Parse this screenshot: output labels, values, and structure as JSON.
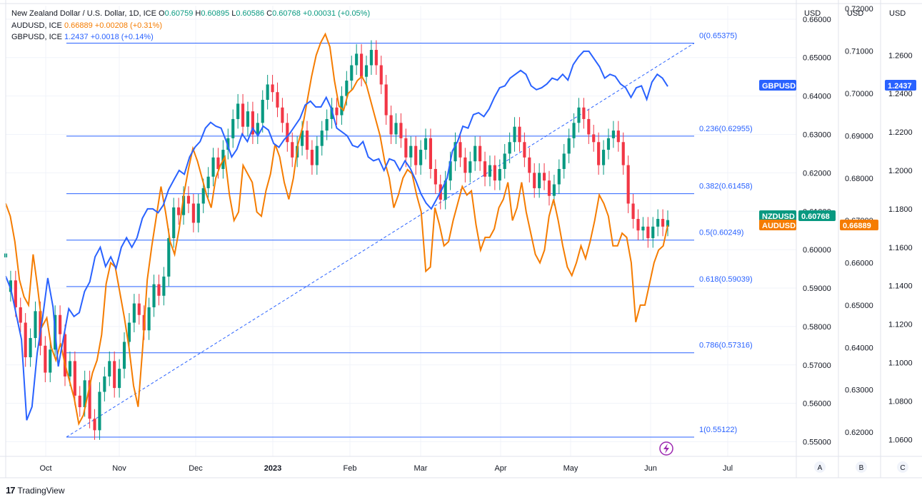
{
  "legend": {
    "nzd": {
      "name": "New Zealand Dollar / U.S. Dollar, 1D, ICE",
      "o_label": "O",
      "o": "0.60759",
      "h_label": "H",
      "h": "0.60895",
      "l_label": "L",
      "l": "0.60586",
      "c_label": "C",
      "c": "0.60768",
      "chg": "+0.00031 (+0.05%)",
      "color": "#089981"
    },
    "aud": {
      "name": "AUDUSD, ICE",
      "value": "0.66889",
      "chg": "+0.00208 (+0.31%)",
      "color": "#f57c00"
    },
    "gbp": {
      "name": "GBPUSD, ICE",
      "value": "1.2437",
      "chg": "+0.0018 (+0.14%)",
      "color": "#2962ff"
    }
  },
  "axis_headers": [
    "USD",
    "USD",
    "USD"
  ],
  "scale_letters": [
    "A",
    "B",
    "C"
  ],
  "footer": {
    "brand": "TradingView",
    "logo": "17"
  },
  "colors": {
    "up": "#089981",
    "down": "#f23645",
    "aud": "#f57c00",
    "gbp": "#2962ff",
    "fib": "#2962ff",
    "grid": "#e0e3eb"
  },
  "chart_data": {
    "type": "line",
    "x_ticks": [
      "Oct",
      "Nov",
      "Dec",
      "2023",
      "Feb",
      "Mar",
      "Apr",
      "May",
      "Jun",
      "Jul"
    ],
    "axis_a": {
      "ticks": [
        "0.66000",
        "0.65000",
        "0.64000",
        "0.63000",
        "0.62000",
        "0.61000",
        "0.60000",
        "0.59000",
        "0.58000",
        "0.57000",
        "0.56000",
        "0.55000"
      ],
      "range": [
        0.5462,
        0.6635
      ]
    },
    "axis_b": {
      "ticks": [
        "0.72000",
        "0.71000",
        "0.70000",
        "0.69000",
        "0.68000",
        "0.67000",
        "0.66000",
        "0.65000",
        "0.64000",
        "0.63000",
        "0.62000"
      ],
      "range": [
        0.6143,
        0.7207
      ]
    },
    "axis_c": {
      "ticks": [
        "1.2600",
        "1.2400",
        "1.2200",
        "1.2000",
        "1.1800",
        "1.1600",
        "1.1400",
        "1.1200",
        "1.1000",
        "1.0800",
        "1.0600"
      ],
      "range": [
        1.0512,
        1.2857
      ]
    },
    "fib_levels": [
      {
        "label": "0(0.65375)",
        "value": 0.65375
      },
      {
        "label": "0.236(0.62955)",
        "value": 0.62955
      },
      {
        "label": "0.382(0.61458)",
        "value": 0.61458
      },
      {
        "label": "0.5(0.60249)",
        "value": 0.60249
      },
      {
        "label": "0.618(0.59039)",
        "value": 0.59039
      },
      {
        "label": "0.786(0.57316)",
        "value": 0.57316
      },
      {
        "label": "1(0.55122)",
        "value": 0.55122
      }
    ],
    "trend_line": {
      "from": [
        "2022-10-13",
        0.55122
      ],
      "to": [
        "2023-06-14",
        0.65375
      ]
    },
    "series": [
      {
        "name": "NZDUSD",
        "last": "0.60768",
        "axis": "A",
        "points": [
          [
            0.598,
            0.599
          ],
          [
            0.589,
            0.592
          ],
          [
            0.592,
            0.585
          ],
          [
            0.585,
            0.581
          ],
          [
            0.581,
            0.572
          ],
          [
            0.572,
            0.577
          ],
          [
            0.577,
            0.584
          ],
          [
            0.584,
            0.575
          ],
          [
            0.575,
            0.568
          ],
          [
            0.568,
            0.574
          ],
          [
            0.574,
            0.583
          ],
          [
            0.583,
            0.578
          ],
          [
            0.578,
            0.567
          ],
          [
            0.567,
            0.571
          ],
          [
            0.571,
            0.562
          ],
          [
            0.562,
            0.559
          ],
          [
            0.559,
            0.566
          ],
          [
            0.566,
            0.556
          ],
          [
            0.556,
            0.553
          ],
          [
            0.553,
            0.563
          ],
          [
            0.563,
            0.567
          ],
          [
            0.567,
            0.571
          ],
          [
            0.571,
            0.564
          ],
          [
            0.564,
            0.569
          ],
          [
            0.569,
            0.576
          ],
          [
            0.576,
            0.581
          ],
          [
            0.581,
            0.586
          ],
          [
            0.586,
            0.583
          ],
          [
            0.583,
            0.579
          ],
          [
            0.579,
            0.585
          ],
          [
            0.585,
            0.591
          ],
          [
            0.591,
            0.588
          ],
          [
            0.588,
            0.593
          ],
          [
            0.593,
            0.603
          ],
          [
            0.603,
            0.611
          ],
          [
            0.611,
            0.609
          ],
          [
            0.609,
            0.614
          ],
          [
            0.614,
            0.612
          ],
          [
            0.612,
            0.607
          ],
          [
            0.607,
            0.612
          ],
          [
            0.612,
            0.616
          ],
          [
            0.616,
            0.619
          ],
          [
            0.619,
            0.624
          ],
          [
            0.624,
            0.621
          ],
          [
            0.621,
            0.626
          ],
          [
            0.626,
            0.629
          ],
          [
            0.629,
            0.634
          ],
          [
            0.634,
            0.638
          ],
          [
            0.638,
            0.632
          ],
          [
            0.632,
            0.636
          ],
          [
            0.636,
            0.63
          ],
          [
            0.63,
            0.633
          ],
          [
            0.633,
            0.639
          ],
          [
            0.639,
            0.643
          ],
          [
            0.643,
            0.641
          ],
          [
            0.641,
            0.637
          ],
          [
            0.637,
            0.633
          ],
          [
            0.633,
            0.628
          ],
          [
            0.628,
            0.624
          ],
          [
            0.624,
            0.627
          ],
          [
            0.627,
            0.631
          ],
          [
            0.631,
            0.626
          ],
          [
            0.626,
            0.622
          ],
          [
            0.622,
            0.627
          ],
          [
            0.627,
            0.631
          ],
          [
            0.631,
            0.634
          ],
          [
            0.634,
            0.637
          ],
          [
            0.637,
            0.635
          ],
          [
            0.635,
            0.64
          ],
          [
            0.64,
            0.644
          ],
          [
            0.644,
            0.648
          ],
          [
            0.648,
            0.651
          ],
          [
            0.651,
            0.645
          ],
          [
            0.645,
            0.648
          ],
          [
            0.648,
            0.652
          ],
          [
            0.652,
            0.648
          ],
          [
            0.648,
            0.643
          ],
          [
            0.643,
            0.635
          ],
          [
            0.635,
            0.63
          ],
          [
            0.63,
            0.633
          ],
          [
            0.633,
            0.629
          ],
          [
            0.629,
            0.624
          ],
          [
            0.624,
            0.627
          ],
          [
            0.627,
            0.622
          ],
          [
            0.622,
            0.626
          ],
          [
            0.626,
            0.629
          ],
          [
            0.629,
            0.621
          ],
          [
            0.621,
            0.617
          ],
          [
            0.617,
            0.613
          ],
          [
            0.613,
            0.618
          ],
          [
            0.618,
            0.623
          ],
          [
            0.623,
            0.628
          ],
          [
            0.628,
            0.624
          ],
          [
            0.624,
            0.62
          ],
          [
            0.62,
            0.623
          ],
          [
            0.623,
            0.627
          ],
          [
            0.627,
            0.623
          ],
          [
            0.623,
            0.619
          ],
          [
            0.619,
            0.622
          ],
          [
            0.622,
            0.618
          ],
          [
            0.618,
            0.621
          ],
          [
            0.621,
            0.625
          ],
          [
            0.625,
            0.628
          ],
          [
            0.628,
            0.632
          ],
          [
            0.632,
            0.628
          ],
          [
            0.628,
            0.624
          ],
          [
            0.624,
            0.62
          ],
          [
            0.62,
            0.616
          ],
          [
            0.616,
            0.62
          ],
          [
            0.62,
            0.618
          ],
          [
            0.618,
            0.614
          ],
          [
            0.614,
            0.617
          ],
          [
            0.617,
            0.621
          ],
          [
            0.621,
            0.625
          ],
          [
            0.625,
            0.629
          ],
          [
            0.629,
            0.633
          ],
          [
            0.633,
            0.637
          ],
          [
            0.637,
            0.634
          ],
          [
            0.634,
            0.63
          ],
          [
            0.63,
            0.628
          ],
          [
            0.628,
            0.622
          ],
          [
            0.622,
            0.626
          ],
          [
            0.626,
            0.629
          ],
          [
            0.629,
            0.631
          ],
          [
            0.631,
            0.628
          ],
          [
            0.628,
            0.622
          ],
          [
            0.622,
            0.612
          ],
          [
            0.612,
            0.608
          ],
          [
            0.608,
            0.605
          ],
          [
            0.605,
            0.606
          ],
          [
            0.606,
            0.603
          ],
          [
            0.603,
            0.606
          ],
          [
            0.606,
            0.608
          ],
          [
            0.608,
            0.606
          ],
          [
            0.606,
            0.6077
          ]
        ]
      },
      {
        "name": "AUDUSD",
        "last": "0.66889",
        "axis": "B",
        "points": [
          0.674,
          0.671,
          0.665,
          0.656,
          0.652,
          0.65,
          0.662,
          0.654,
          0.645,
          0.647,
          0.64,
          0.637,
          0.641,
          0.636,
          0.632,
          0.628,
          0.622,
          0.624,
          0.629,
          0.634,
          0.637,
          0.643,
          0.655,
          0.66,
          0.659,
          0.653,
          0.647,
          0.64,
          0.631,
          0.626,
          0.64,
          0.656,
          0.664,
          0.671,
          0.678,
          0.672,
          0.665,
          0.662,
          0.668,
          0.676,
          0.682,
          0.687,
          0.684,
          0.68,
          0.676,
          0.673,
          0.68,
          0.683,
          0.685,
          0.676,
          0.67,
          0.672,
          0.683,
          0.681,
          0.679,
          0.672,
          0.671,
          0.677,
          0.681,
          0.688,
          0.685,
          0.679,
          0.675,
          0.68,
          0.688,
          0.692,
          0.698,
          0.704,
          0.709,
          0.712,
          0.714,
          0.711,
          0.703,
          0.697,
          0.696,
          0.7,
          0.701,
          0.703,
          0.704,
          0.702,
          0.698,
          0.694,
          0.69,
          0.684,
          0.68,
          0.673,
          0.676,
          0.68,
          0.682,
          0.681,
          0.676,
          0.672,
          0.658,
          0.659,
          0.673,
          0.669,
          0.664,
          0.665,
          0.67,
          0.674,
          0.678,
          0.676,
          0.677,
          0.669,
          0.663,
          0.666,
          0.666,
          0.668,
          0.673,
          0.675,
          0.679,
          0.67,
          0.673,
          0.679,
          0.672,
          0.667,
          0.662,
          0.66,
          0.663,
          0.671,
          0.675,
          0.67,
          0.664,
          0.659,
          0.657,
          0.66,
          0.664,
          0.661,
          0.665,
          0.67,
          0.676,
          0.674,
          0.671,
          0.664,
          0.664,
          0.667,
          0.666,
          0.66,
          0.646,
          0.65,
          0.65,
          0.655,
          0.66,
          0.663,
          0.664,
          0.6689
        ]
      },
      {
        "name": "GBPUSD",
        "last": "1.2437",
        "axis": "C",
        "points": [
          1.145,
          1.138,
          1.125,
          1.112,
          1.07,
          1.077,
          1.105,
          1.123,
          1.144,
          1.129,
          1.098,
          1.113,
          1.128,
          1.124,
          1.126,
          1.137,
          1.142,
          1.155,
          1.16,
          1.15,
          1.155,
          1.149,
          1.16,
          1.165,
          1.16,
          1.165,
          1.175,
          1.18,
          1.18,
          1.178,
          1.182,
          1.19,
          1.195,
          1.2,
          1.198,
          1.207,
          1.212,
          1.215,
          1.222,
          1.225,
          1.223,
          1.222,
          1.215,
          1.207,
          1.211,
          1.219,
          1.215,
          1.222,
          1.218,
          1.223,
          1.221,
          1.214,
          1.212,
          1.216,
          1.219,
          1.223,
          1.227,
          1.234,
          1.236,
          1.233,
          1.233,
          1.238,
          1.232,
          1.222,
          1.22,
          1.218,
          1.213,
          1.212,
          1.215,
          1.207,
          1.205,
          1.206,
          1.2,
          1.206,
          1.205,
          1.2,
          1.205,
          1.201,
          1.195,
          1.188,
          1.183,
          1.18,
          1.185,
          1.19,
          1.196,
          1.21,
          1.215,
          1.223,
          1.222,
          1.229,
          1.23,
          1.228,
          1.232,
          1.238,
          1.243,
          1.244,
          1.248,
          1.25,
          1.252,
          1.25,
          1.244,
          1.242,
          1.243,
          1.245,
          1.248,
          1.247,
          1.25,
          1.247,
          1.255,
          1.259,
          1.262,
          1.262,
          1.258,
          1.254,
          1.248,
          1.25,
          1.249,
          1.245,
          1.243,
          1.238,
          1.243,
          1.244,
          1.237,
          1.246,
          1.25,
          1.248,
          1.2437
        ]
      }
    ],
    "price_tags": [
      {
        "name": "GBPUSD",
        "value": "1.2437"
      },
      {
        "name": "NZDUSD",
        "value": "0.60768"
      },
      {
        "name": "AUDUSD",
        "value": "0.66889"
      }
    ]
  }
}
